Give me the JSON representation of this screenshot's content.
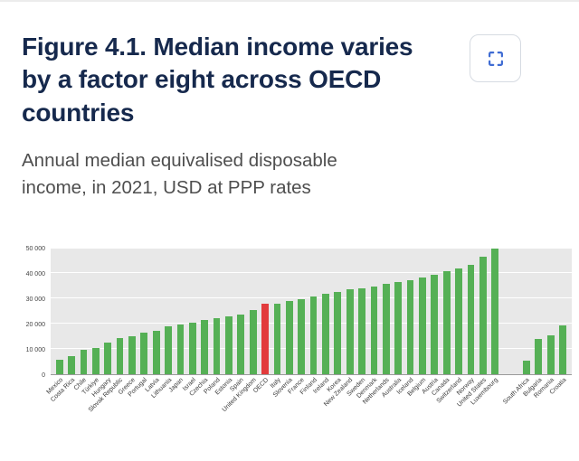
{
  "header": {
    "title": "Figure 4.1. Median income varies by a factor eight across OECD countries",
    "subtitle": "Annual median equivalised disposable income, in 2021, USD at PPP rates"
  },
  "toolbar": {
    "fullscreen_icon": "fullscreen-expand-icon",
    "accent_color": "#3e6bd3"
  },
  "chart_data": {
    "type": "bar",
    "title": "Figure 4.1. Median income varies by a factor eight across OECD countries",
    "subtitle": "Annual median equivalised disposable income, in 2021, USD at PPP rates",
    "xlabel": "",
    "ylabel": "",
    "ylim": [
      0,
      50000
    ],
    "yticks": [
      0,
      10000,
      20000,
      30000,
      40000,
      50000
    ],
    "ytick_labels": [
      "0",
      "10 000",
      "20 000",
      "30 000",
      "40 000",
      "50 000"
    ],
    "grid": true,
    "legend": "none",
    "colors": {
      "bar": "#55b055",
      "highlight": "#e23b3c",
      "plot_background": "#e8e8e8",
      "gridline": "#ffffff"
    },
    "highlight_category": "OECD",
    "items": [
      {
        "label": "Mexico",
        "value": 5800
      },
      {
        "label": "Costa Rica",
        "value": 7200
      },
      {
        "label": "Chile",
        "value": 9600
      },
      {
        "label": "Türkiye",
        "value": 10400
      },
      {
        "label": "Hungary",
        "value": 12600
      },
      {
        "label": "Slovak Republic",
        "value": 14300
      },
      {
        "label": "Greece",
        "value": 15000
      },
      {
        "label": "Portugal",
        "value": 16400
      },
      {
        "label": "Latvia",
        "value": 17200
      },
      {
        "label": "Lithuania",
        "value": 18900
      },
      {
        "label": "Japan",
        "value": 19800
      },
      {
        "label": "Israel",
        "value": 20500
      },
      {
        "label": "Czechia",
        "value": 21300
      },
      {
        "label": "Poland",
        "value": 22100
      },
      {
        "label": "Estonia",
        "value": 22900
      },
      {
        "label": "Spain",
        "value": 23700
      },
      {
        "label": "United Kingdom",
        "value": 25400
      },
      {
        "label": "OECD",
        "value": 27900,
        "highlight": true
      },
      {
        "label": "Italy",
        "value": 28100
      },
      {
        "label": "Slovenia",
        "value": 28900
      },
      {
        "label": "France",
        "value": 29700
      },
      {
        "label": "Finland",
        "value": 30700
      },
      {
        "label": "Ireland",
        "value": 31800
      },
      {
        "label": "Korea",
        "value": 32700
      },
      {
        "label": "New Zealand",
        "value": 33500
      },
      {
        "label": "Sweden",
        "value": 34200
      },
      {
        "label": "Denmark",
        "value": 34900
      },
      {
        "label": "Netherlands",
        "value": 35700
      },
      {
        "label": "Australia",
        "value": 36600
      },
      {
        "label": "Iceland",
        "value": 37400
      },
      {
        "label": "Belgium",
        "value": 38200
      },
      {
        "label": "Austria",
        "value": 39500
      },
      {
        "label": "Canada",
        "value": 40800
      },
      {
        "label": "Switzerland",
        "value": 42000
      },
      {
        "label": "Norway",
        "value": 43400
      },
      {
        "label": "United States",
        "value": 46800
      },
      {
        "label": "Luxembourg",
        "value": 49900
      },
      {
        "label": "South Africa",
        "value": 5400,
        "gap_before": true
      },
      {
        "label": "Bulgaria",
        "value": 13800
      },
      {
        "label": "Romania",
        "value": 15300
      },
      {
        "label": "Croatia",
        "value": 19200
      }
    ]
  }
}
